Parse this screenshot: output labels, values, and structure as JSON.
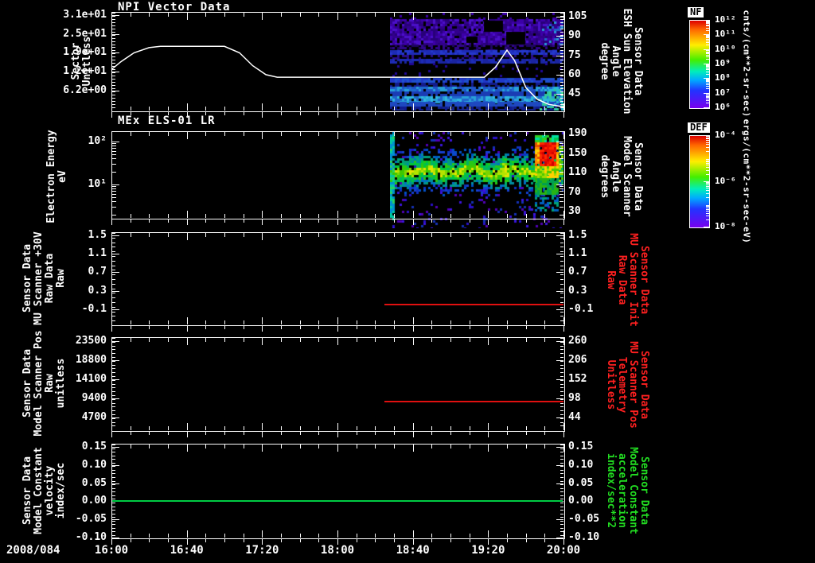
{
  "page": {
    "background": "#000000",
    "date_label": "2008/084"
  },
  "x_axis": {
    "labels": [
      "16:00",
      "16:40",
      "17:20",
      "18:00",
      "18:40",
      "19:20",
      "20:00"
    ],
    "minutes": [
      0,
      40,
      80,
      120,
      160,
      200,
      240
    ]
  },
  "colors": {
    "axis": "#ffffff",
    "red_series": "#e01010",
    "green_series": "#00cc44",
    "red_label": "#ff2020",
    "green_label": "#22dd22"
  },
  "panels": [
    {
      "title": "NPI Vector Data",
      "left_label_lines": [
        "Sector",
        "Unitless"
      ],
      "left_ticks": [
        "3.1e+01",
        "2.5e+01",
        "1.9e+01",
        "1.2e+01",
        "6.2e+00"
      ],
      "right_ticks": [
        "105",
        "90",
        "75",
        "60",
        "45"
      ],
      "right_label_lines": [
        "Sensor Data",
        "ESH Sun Elevation",
        "Angle",
        "degree"
      ],
      "right_label_color": "#ffffff"
    },
    {
      "title": "MEx ELS-01 LR",
      "left_label_lines": [
        "Electron Energy",
        "eV"
      ],
      "left_ticks": [
        "10²",
        "10¹"
      ],
      "right_ticks": [
        "190",
        "150",
        "110",
        "70",
        "30"
      ],
      "right_label_lines": [
        "Sensor Data",
        "Model Scanner",
        "Angle",
        "degrees"
      ],
      "right_label_color": "#ffffff"
    },
    {
      "title": "",
      "left_label_lines": [
        "Sensor Data",
        "MU Scanner +30V",
        "Raw Data",
        "Raw"
      ],
      "left_ticks": [
        "1.5",
        "1.1",
        "0.7",
        "0.3",
        "-0.1"
      ],
      "right_ticks": [
        "1.5",
        "1.1",
        "0.7",
        "0.3",
        "-0.1"
      ],
      "right_label_lines": [
        "Sensor Data",
        "MU Scanner Init",
        "Raw Data",
        "Raw"
      ],
      "right_label_color": "#ff2020"
    },
    {
      "title": "",
      "left_label_lines": [
        "Sensor Data",
        "Model Scanner Pos",
        "Raw",
        "unitless"
      ],
      "left_ticks": [
        "23500",
        "18800",
        "14100",
        "9400",
        "4700"
      ],
      "right_ticks": [
        "260",
        "206",
        "152",
        "98",
        "44"
      ],
      "right_label_lines": [
        "Sensor Data",
        "MU Scanner Pos",
        "Telemetry",
        "Unitless"
      ],
      "right_label_color": "#ff2020"
    },
    {
      "title": "",
      "left_label_lines": [
        "Sensor Data",
        "Model Constant",
        "velocity",
        "index/sec"
      ],
      "left_ticks": [
        "0.15",
        "0.10",
        "0.05",
        "0.00",
        "-0.05",
        "-0.10"
      ],
      "right_ticks": [
        "0.15",
        "0.10",
        "0.05",
        "0.00",
        "-0.05",
        "-0.10"
      ],
      "right_label_lines": [
        "Sensor Data",
        "Model Constant",
        "acceleration",
        "index/sec**2"
      ],
      "right_label_color": "#22dd22"
    }
  ],
  "colorbars": [
    {
      "title": "NF",
      "ticks": [
        "10¹²",
        "10¹¹",
        "10¹⁰",
        "10⁹",
        "10⁸",
        "10⁷",
        "10⁶"
      ],
      "units": "cnts/(cm**2-sr-sec)"
    },
    {
      "title": "DEF",
      "ticks": [
        "10⁻⁴",
        "10⁻⁶",
        "10⁻⁸"
      ],
      "units": "ergs/(cm**2-sr-sec-eV)"
    }
  ],
  "chart_data": [
    {
      "type": "heatmap",
      "title": "NPI Vector Data",
      "x_ticks": [
        "16:00",
        "16:40",
        "17:20",
        "18:00",
        "18:40",
        "19:20",
        "20:00"
      ],
      "x_start_label": "2008/084 16:00",
      "y_axis_left": {
        "label": "Sector Unitless",
        "ticks": [
          31,
          25,
          19,
          12.4,
          6.2
        ]
      },
      "y_axis_right": {
        "label": "Sensor Data ESH Sun Elevation Angle degree",
        "ticks": [
          105,
          90,
          75,
          60,
          45
        ]
      },
      "colorbar": "NF  cnts/(cm**2-sr-sec), 10^6 to 10^12",
      "spectrogram": {
        "data_start": "18:25",
        "data_end": "20:00",
        "description": "banded low-intensity purple/blue sector spectrogram; dark gap band mid-panel; brighter cyan-green toward 20:00"
      },
      "overlay_line": {
        "name": "ESH Sun Elevation Angle",
        "units": "degrees (right axis)",
        "points": [
          [
            "16:00",
            64
          ],
          [
            "16:05",
            70
          ],
          [
            "16:12",
            77
          ],
          [
            "16:20",
            81
          ],
          [
            "16:26",
            82
          ],
          [
            "17:00",
            82
          ],
          [
            "17:08",
            77
          ],
          [
            "17:15",
            67
          ],
          [
            "17:22",
            60
          ],
          [
            "17:28",
            58
          ],
          [
            "19:18",
            58
          ],
          [
            "19:24",
            66
          ],
          [
            "19:30",
            79
          ],
          [
            "19:34",
            71
          ],
          [
            "19:40",
            50
          ],
          [
            "19:46",
            41
          ],
          [
            "19:52",
            37
          ],
          [
            "20:00",
            35
          ]
        ]
      }
    },
    {
      "type": "heatmap",
      "title": "MEx ELS-01 LR",
      "y_axis_left": {
        "label": "Electron Energy eV",
        "scale": "log",
        "ticks": [
          100,
          10
        ]
      },
      "y_axis_right": {
        "label": "Sensor Data Model Scanner Angle degrees",
        "ticks": [
          190,
          150,
          110,
          70,
          30
        ]
      },
      "colorbar": "DEF  ergs/(cm**2-sr-sec-eV), 10^-8 to 10^-4",
      "spectrogram": {
        "data_start": "18:25",
        "data_end": "20:00",
        "description": "sparse blue speckle background; continuous green-yellow band near 10-25 eV; intense red patch ~80-160 eV around 19:50-19:58 with green halo"
      }
    },
    {
      "type": "line",
      "ylim": [
        -0.1,
        1.5
      ],
      "y_ticks": [
        1.5,
        1.1,
        0.7,
        0.3,
        -0.1
      ],
      "series": [
        {
          "name": "Sensor Data MU Scanner Init Raw Data Raw",
          "color": "#e01010",
          "points": [
            [
              "18:25",
              0.0
            ],
            [
              "20:00",
              0.0
            ]
          ]
        }
      ]
    },
    {
      "type": "line",
      "ylim_left": [
        4700,
        23500
      ],
      "y_ticks_left": [
        23500,
        18800,
        14100,
        9400,
        4700
      ],
      "ylim_right": [
        44,
        260
      ],
      "y_ticks_right": [
        260,
        206,
        152,
        98,
        44
      ],
      "series": [
        {
          "name": "Sensor Data MU Scanner Pos Telemetry Unitless",
          "color": "#e01010",
          "axis": "right",
          "points": [
            [
              "18:25",
              88
            ],
            [
              "20:00",
              88
            ]
          ]
        }
      ]
    },
    {
      "type": "line",
      "ylim": [
        -0.1,
        0.15
      ],
      "y_ticks": [
        0.15,
        0.1,
        0.05,
        0.0,
        -0.05,
        -0.1
      ],
      "series": [
        {
          "name": "Sensor Data Model Constant velocity index/sec",
          "color": "#00cc44",
          "points": [
            [
              "16:00",
              0.0
            ],
            [
              "20:00",
              0.0
            ]
          ]
        }
      ]
    }
  ]
}
